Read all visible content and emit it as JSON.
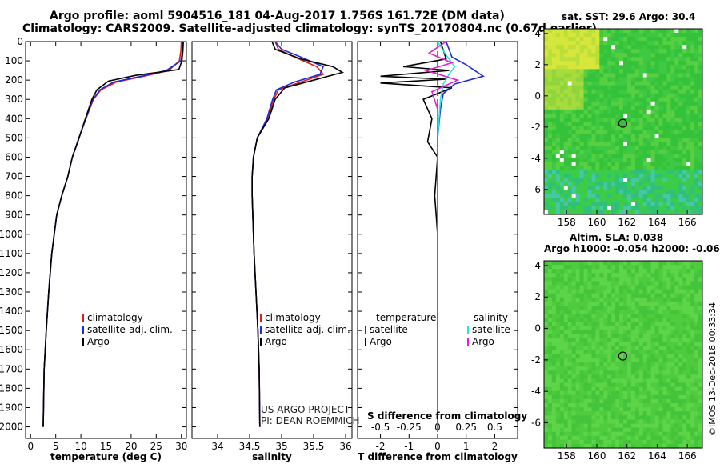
{
  "header": {
    "line1": "Argo profile: aoml 5904516_181 04-Aug-2017 1.756S 161.72E (DM data)",
    "line2": "Climatology: CARS2009. Satellite-adjusted climatology: synTS_20170804.nc (0.67d earlier)"
  },
  "colors": {
    "climatology": "#e41a1c",
    "satellite": "#1f2bd6",
    "argo": "#000000",
    "satellite_cyan": "#22e6e6",
    "magenta": "#e020d0"
  },
  "legend_profiles": {
    "climatology": "climatology",
    "satellite": "satellite-adj. clim.",
    "argo": "Argo"
  },
  "legend_diff": {
    "temp_title": "temperature",
    "sal_title": "salinity",
    "satellite": "satellite",
    "argo": "Argo"
  },
  "credit": {
    "line1": "US ARGO PROJECT",
    "line2": "PI: DEAN ROEMMICH"
  },
  "diff_panel": {
    "s_label": "S difference from climatology"
  },
  "sst_map": {
    "title": "sat. SST: 29.6 Argo: 30.4"
  },
  "sla_map": {
    "title1": "Altim. SLA: 0.038",
    "title2": "Argo h1000: -0.054 h2000: -0.062"
  },
  "watermark": "©IMOS 13-Dec-2018 00:33:34",
  "chart_data": [
    {
      "type": "line",
      "xlabel": "temperature (deg C)",
      "xlim": [
        -1,
        31
      ],
      "xticks": [
        0,
        5,
        10,
        15,
        20,
        25,
        30
      ],
      "ylim": [
        2060,
        0
      ],
      "yticks": [
        0,
        100,
        200,
        300,
        400,
        500,
        600,
        700,
        800,
        900,
        1000,
        1100,
        1200,
        1300,
        1400,
        1500,
        1600,
        1700,
        1800,
        1900,
        2000
      ],
      "series": [
        {
          "name": "climatology",
          "color": "#e41a1c",
          "x": [
            30.0,
            29.9,
            29.6,
            27.5,
            22.5,
            17.0,
            14.0,
            12.5,
            11.0,
            9.6,
            8.3,
            7.4,
            6.2,
            5.2,
            4.2,
            3.6,
            3.1,
            2.7,
            2.5
          ],
          "y": [
            0,
            50,
            100,
            150,
            180,
            210,
            250,
            300,
            400,
            500,
            600,
            700,
            800,
            900,
            1100,
            1300,
            1500,
            1700,
            2000
          ]
        },
        {
          "name": "satellite-adj. clim.",
          "color": "#1f2bd6",
          "x": [
            30.3,
            30.2,
            29.9,
            27.0,
            22.0,
            16.5,
            13.8,
            12.4,
            11.0,
            9.6,
            8.3,
            7.4,
            6.2,
            5.2,
            4.2,
            3.6,
            3.1,
            2.7,
            2.5
          ],
          "y": [
            0,
            50,
            100,
            150,
            180,
            210,
            250,
            300,
            400,
            500,
            600,
            700,
            800,
            900,
            1100,
            1300,
            1500,
            1700,
            2000
          ]
        },
        {
          "name": "Argo",
          "color": "#000000",
          "x": [
            30.4,
            30.3,
            30.1,
            29.5,
            21.0,
            15.5,
            13.2,
            12.2,
            10.9,
            9.4,
            8.3,
            7.4,
            6.2,
            5.2,
            4.2,
            3.6,
            3.1,
            2.7,
            2.5
          ],
          "y": [
            0,
            50,
            100,
            145,
            175,
            205,
            250,
            300,
            400,
            520,
            600,
            700,
            800,
            900,
            1100,
            1300,
            1500,
            1700,
            2000
          ]
        }
      ]
    },
    {
      "type": "line",
      "xlabel": "salinity",
      "xlim": [
        33.6,
        36.1
      ],
      "xticks": [
        34,
        34.5,
        35,
        35.5,
        36
      ],
      "ylim": [
        2060,
        0
      ],
      "series": [
        {
          "name": "climatology",
          "color": "#e41a1c",
          "x": [
            34.9,
            34.95,
            35.2,
            35.55,
            35.65,
            35.3,
            34.95,
            34.88,
            34.78,
            34.62,
            34.56,
            34.54,
            34.54,
            34.55,
            34.57,
            34.6,
            34.63,
            34.65,
            34.66
          ],
          "y": [
            0,
            40,
            80,
            130,
            170,
            210,
            250,
            300,
            400,
            500,
            600,
            700,
            800,
            900,
            1100,
            1300,
            1500,
            1700,
            2000
          ]
        },
        {
          "name": "satellite-adj. clim.",
          "color": "#1f2bd6",
          "x": [
            34.9,
            35.0,
            35.3,
            35.65,
            35.6,
            35.2,
            34.92,
            34.86,
            34.77,
            34.62,
            34.56,
            34.54,
            34.54,
            34.55,
            34.57,
            34.6,
            34.63,
            34.65,
            34.66
          ],
          "y": [
            0,
            40,
            80,
            130,
            170,
            210,
            250,
            300,
            400,
            500,
            600,
            700,
            800,
            900,
            1100,
            1300,
            1500,
            1700,
            2000
          ]
        },
        {
          "name": "Argo",
          "color": "#000000",
          "x": [
            34.85,
            34.9,
            35.3,
            35.8,
            35.95,
            35.5,
            35.05,
            34.9,
            34.8,
            34.62,
            34.56,
            34.54,
            34.54,
            34.55,
            34.57,
            34.6,
            34.63,
            34.65,
            34.66
          ],
          "y": [
            0,
            40,
            90,
            130,
            160,
            200,
            240,
            300,
            400,
            500,
            600,
            700,
            800,
            900,
            1100,
            1300,
            1500,
            1700,
            2000
          ]
        }
      ]
    },
    {
      "type": "line",
      "xlabel": "T difference from climatology",
      "xlim": [
        -2.8,
        2.8
      ],
      "xticks": [
        -2,
        -1,
        0,
        1,
        2
      ],
      "secondary_xlabel": "S difference from climatology",
      "secondary_xticks": [
        "-0.5",
        "-0.25",
        "0",
        "0.25",
        "0.5"
      ],
      "ylim": [
        2060,
        0
      ],
      "series": [
        {
          "name": "Argo T",
          "color": "#000000",
          "x": [
            0.1,
            0.3,
            -1.2,
            0.4,
            -2.0,
            0.3,
            -2.0,
            0.5,
            -0.5,
            -0.2,
            -0.35,
            0.0,
            -0.1,
            0.0,
            0.0,
            0.0,
            0.0,
            0.0
          ],
          "y": [
            0,
            90,
            130,
            150,
            180,
            195,
            215,
            240,
            300,
            400,
            520,
            600,
            800,
            1000,
            1200,
            1400,
            1700,
            2000
          ]
        },
        {
          "name": "satellite T",
          "color": "#1f2bd6",
          "x": [
            0.3,
            0.5,
            1.0,
            1.6,
            0.6,
            0.2,
            0.1,
            0.0,
            0.0,
            0.0
          ],
          "y": [
            0,
            80,
            120,
            180,
            220,
            270,
            350,
            500,
            1000,
            2000
          ]
        },
        {
          "name": "satellite S",
          "color": "#22e6e6",
          "x": [
            0.0,
            0.3,
            0.6,
            0.4,
            0.2,
            0.1,
            0.0,
            0.0,
            0.0
          ],
          "y": [
            0,
            70,
            130,
            170,
            220,
            300,
            500,
            1000,
            2000
          ]
        },
        {
          "name": "Argo S",
          "color": "#e020d0",
          "x": [
            0.3,
            -0.3,
            0.5,
            -0.4,
            0.7,
            -0.2,
            0.0,
            0.0
          ],
          "y": [
            0,
            60,
            110,
            150,
            200,
            260,
            350,
            2000
          ]
        }
      ]
    },
    {
      "type": "heatmap",
      "title": "sat. SST: 29.6 Argo: 30.4",
      "xticks": [
        158,
        160,
        162,
        164,
        166
      ],
      "yticks": [
        4,
        2,
        0,
        -2,
        -4,
        -6
      ],
      "xlim": [
        156.5,
        167
      ],
      "ylim": [
        -7.6,
        4.3
      ],
      "marker": {
        "lon": 161.72,
        "lat": -1.756
      }
    },
    {
      "type": "heatmap",
      "title": "Altim. SLA: 0.038",
      "subtitle": "Argo h1000: -0.054 h2000: -0.062",
      "xticks": [
        158,
        160,
        162,
        164,
        166
      ],
      "yticks": [
        4,
        2,
        0,
        -2,
        -4,
        -6
      ],
      "xlim": [
        156.5,
        167
      ],
      "ylim": [
        -7.6,
        4.3
      ],
      "marker": {
        "lon": 161.72,
        "lat": -1.756
      }
    }
  ]
}
